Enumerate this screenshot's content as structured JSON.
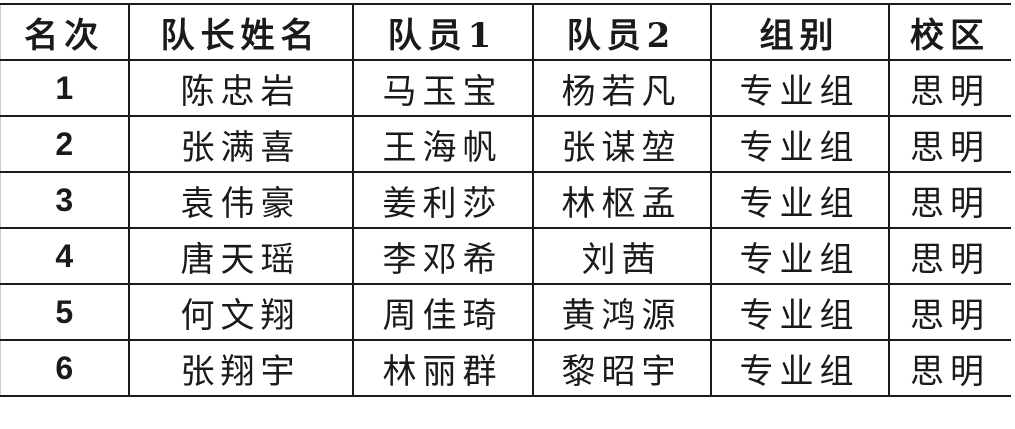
{
  "table": {
    "headers": [
      "名次",
      "队长姓名",
      "队员1",
      "队员2",
      "组别",
      "校区"
    ],
    "rows": [
      [
        "1",
        "陈忠岩",
        "马玉宝",
        "杨若凡",
        "专业组",
        "思明"
      ],
      [
        "2",
        "张满喜",
        "王海帆",
        "张谋堃",
        "专业组",
        "思明"
      ],
      [
        "3",
        "袁伟豪",
        "姜利莎",
        "林枢孟",
        "专业组",
        "思明"
      ],
      [
        "4",
        "唐天瑶",
        "李邓希",
        "刘茜",
        "专业组",
        "思明"
      ],
      [
        "5",
        "何文翔",
        "周佳琦",
        "黄鸿源",
        "专业组",
        "思明"
      ],
      [
        "6",
        "张翔宇",
        "林丽群",
        "黎昭宇",
        "专业组",
        "思明"
      ]
    ]
  }
}
